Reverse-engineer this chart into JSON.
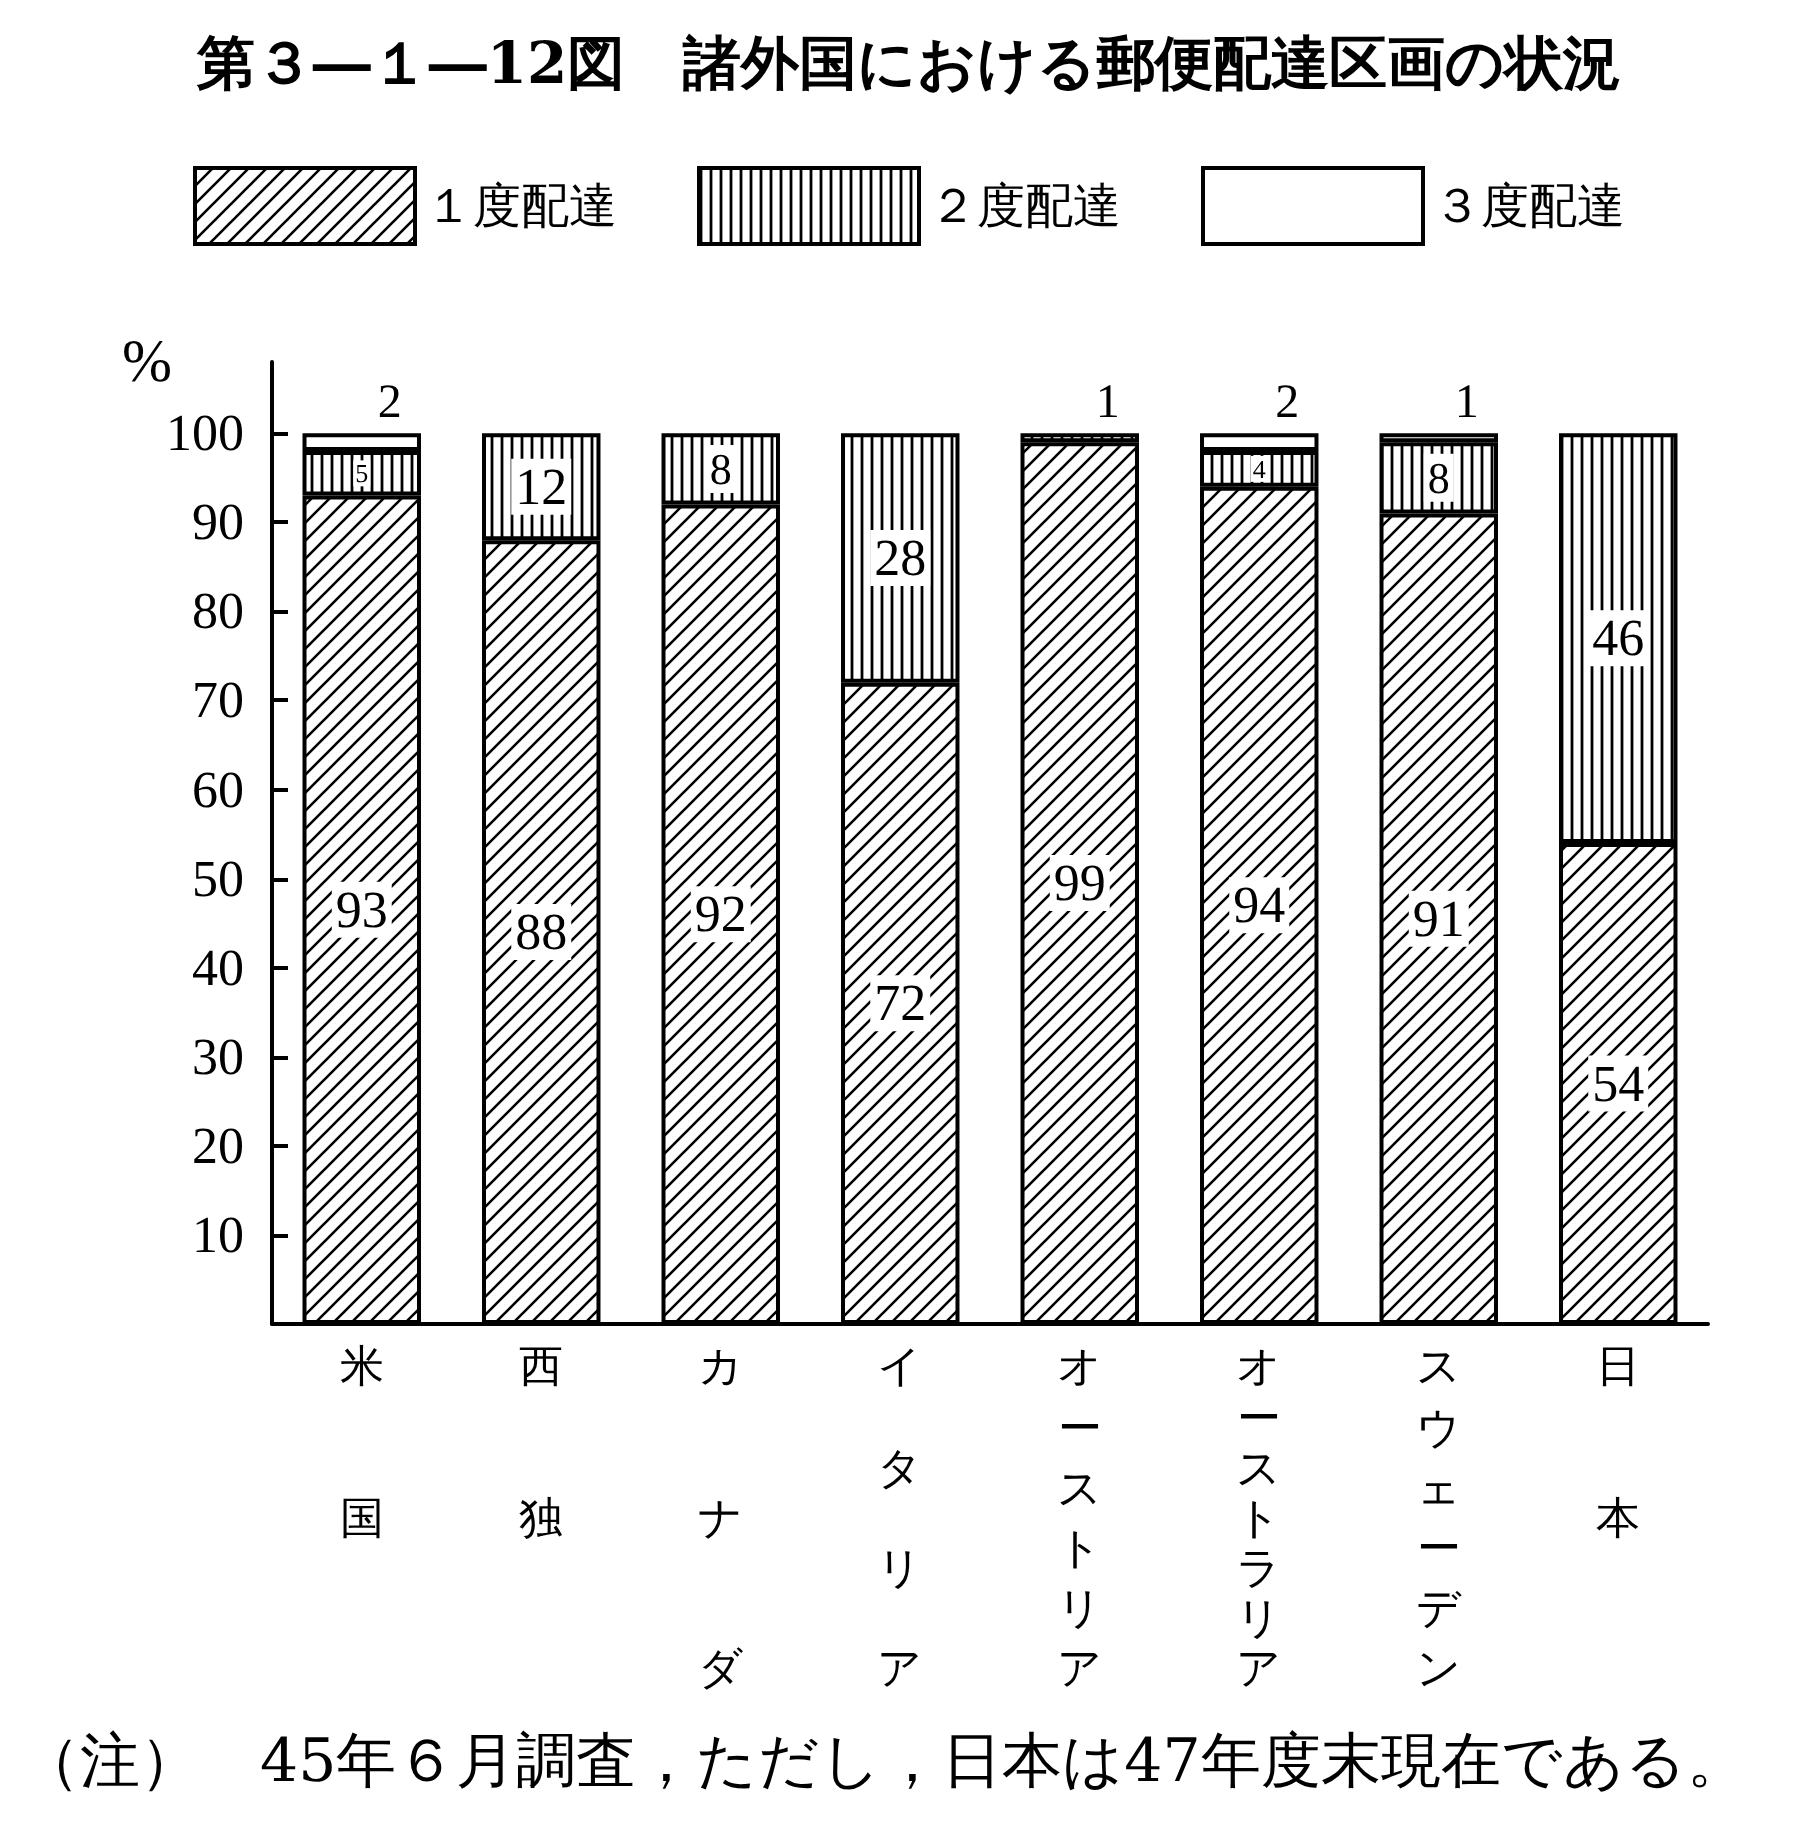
{
  "chart_data": {
    "type": "bar",
    "title": "第３―１―12図　諸外国における郵便配達区画の状況",
    "ylabel": "%",
    "categories": [
      "米国",
      "西独",
      "カナダ",
      "イタリア",
      "オーストリア",
      "オーストラリア",
      "スウェーデン",
      "日本"
    ],
    "series": [
      {
        "name": "１度配達",
        "color": "#000000",
        "values": [
          93,
          88,
          92,
          72,
          99,
          94,
          91,
          54
        ]
      },
      {
        "name": "２度配達",
        "color": "#000000",
        "values": [
          5,
          12,
          8,
          28,
          1,
          4,
          8,
          46
        ]
      },
      {
        "name": "３度配達",
        "color": "#ffffff",
        "values": [
          2,
          null,
          null,
          null,
          null,
          2,
          1,
          null
        ]
      }
    ],
    "stacked": true,
    "data_labels": true,
    "legend": "top",
    "ylim": [
      0,
      108
    ],
    "yticks": [
      10,
      20,
      30,
      40,
      50,
      60,
      70,
      80,
      90,
      100
    ],
    "annotations": [
      "（注）　45年６月調査，ただし，日本は47年度末現在である。"
    ]
  }
}
